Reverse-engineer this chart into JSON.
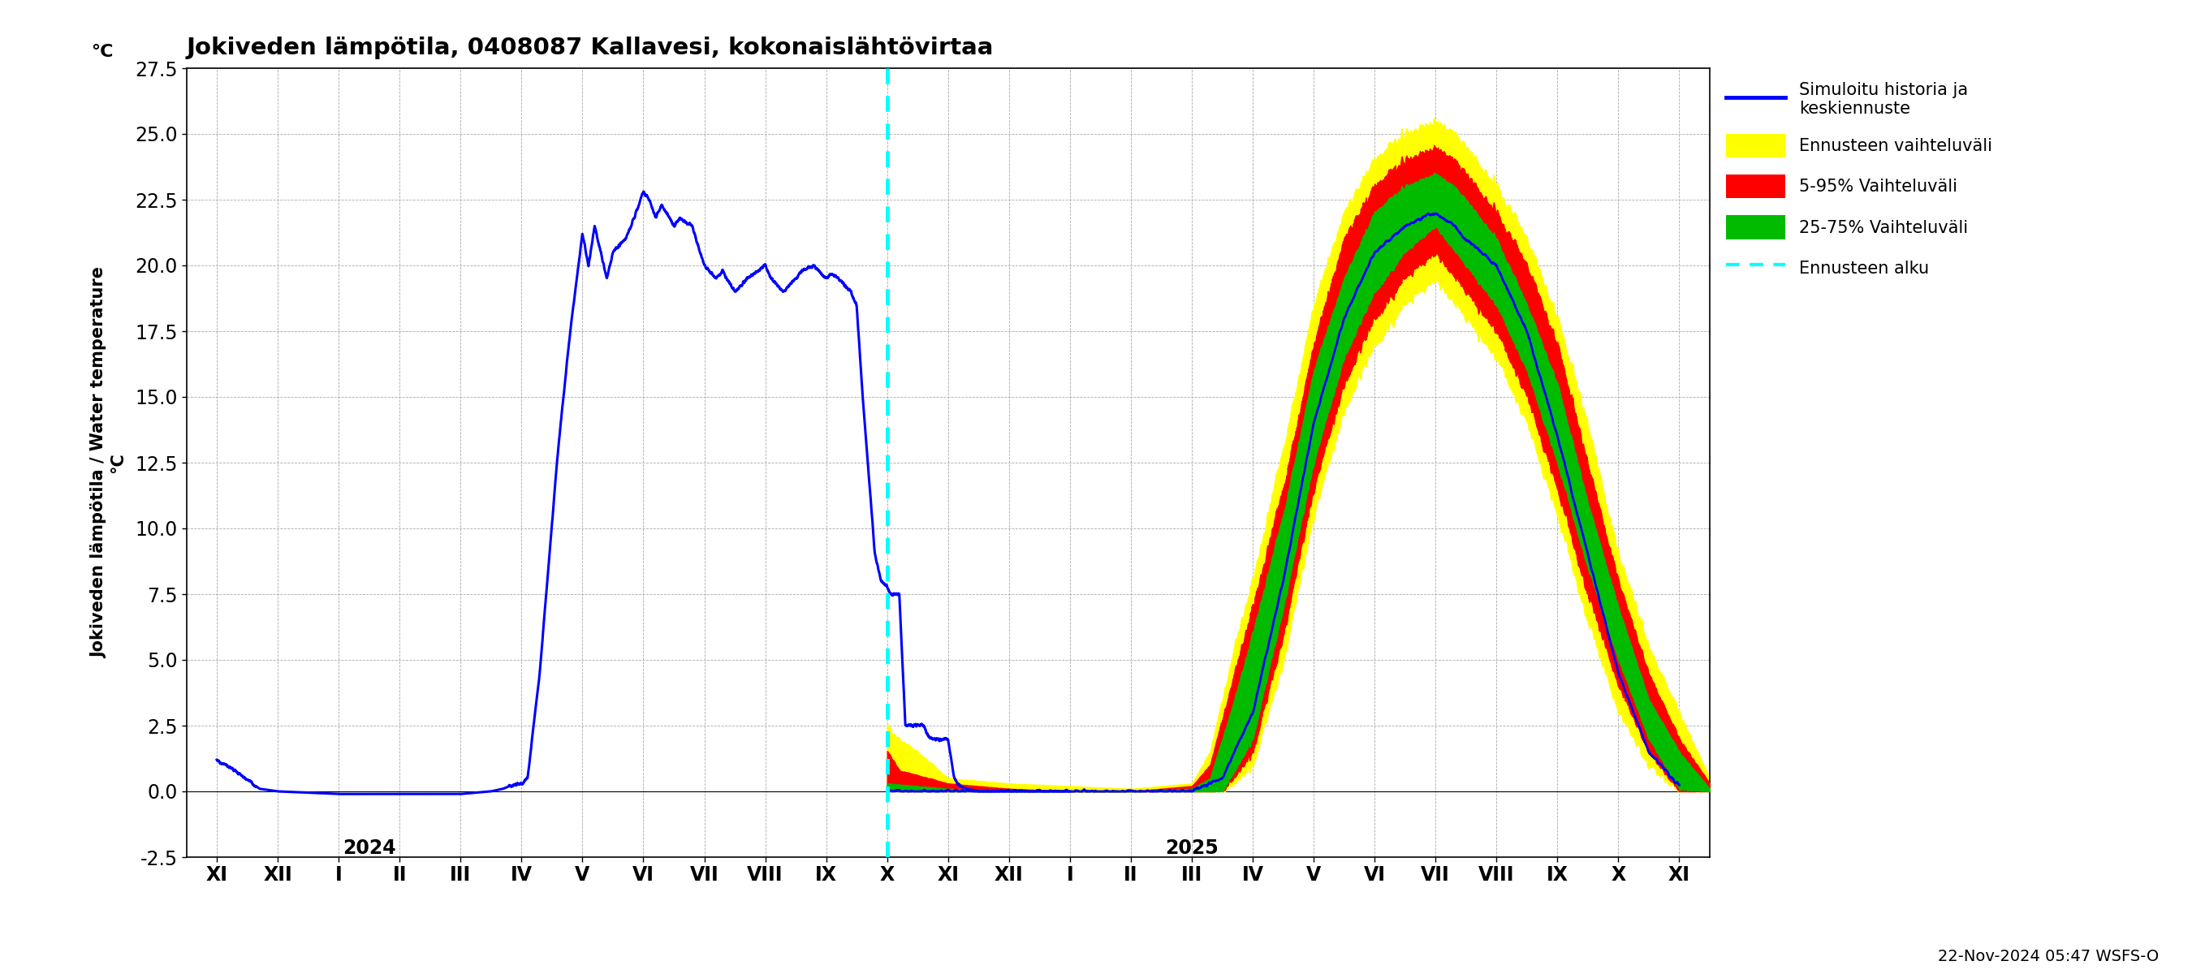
{
  "title": "Jokiveden lämpötila, 0408087 Kallavesi, kokonaislähtövirtaa",
  "ylabel_fi": "Jokiveden lämpötila / Water temperature",
  "ylabel_unit": "°C",
  "ylim": [
    -2.5,
    27.5
  ],
  "yticks": [
    -2.5,
    0.0,
    2.5,
    5.0,
    7.5,
    10.0,
    12.5,
    15.0,
    17.5,
    20.0,
    22.5,
    25.0,
    27.5
  ],
  "footer_text": "22-Nov-2024 05:47 WSFS-O",
  "colors": {
    "history_line": "#0000ff",
    "forecast_band_yellow": "#ffff00",
    "forecast_band_red": "#ff0000",
    "forecast_band_green": "#00bb00",
    "forecast_start": "#00ffff",
    "grid": "#aaaaaa"
  },
  "legend_labels": [
    "Simuloitu historia ja\nkeskiennuste",
    "Ennusteen vaihteluväli",
    "5-95% Vaihteluväli",
    "25-75% Vaihteluväli",
    "Ennusteen alku"
  ],
  "month_labels": [
    "XI",
    "XII",
    "I",
    "II",
    "III",
    "IV",
    "V",
    "VI",
    "VII",
    "VIII",
    "IX",
    "X",
    "XI",
    "XII",
    "I",
    "II",
    "III",
    "IV",
    "V",
    "VI",
    "VII",
    "VIII",
    "IX",
    "X",
    "XI"
  ],
  "year_2024_x": 2.5,
  "year_2025_x": 16.0,
  "forecast_start_x": 11,
  "xlim_left": -0.5,
  "xlim_right": 24.5
}
